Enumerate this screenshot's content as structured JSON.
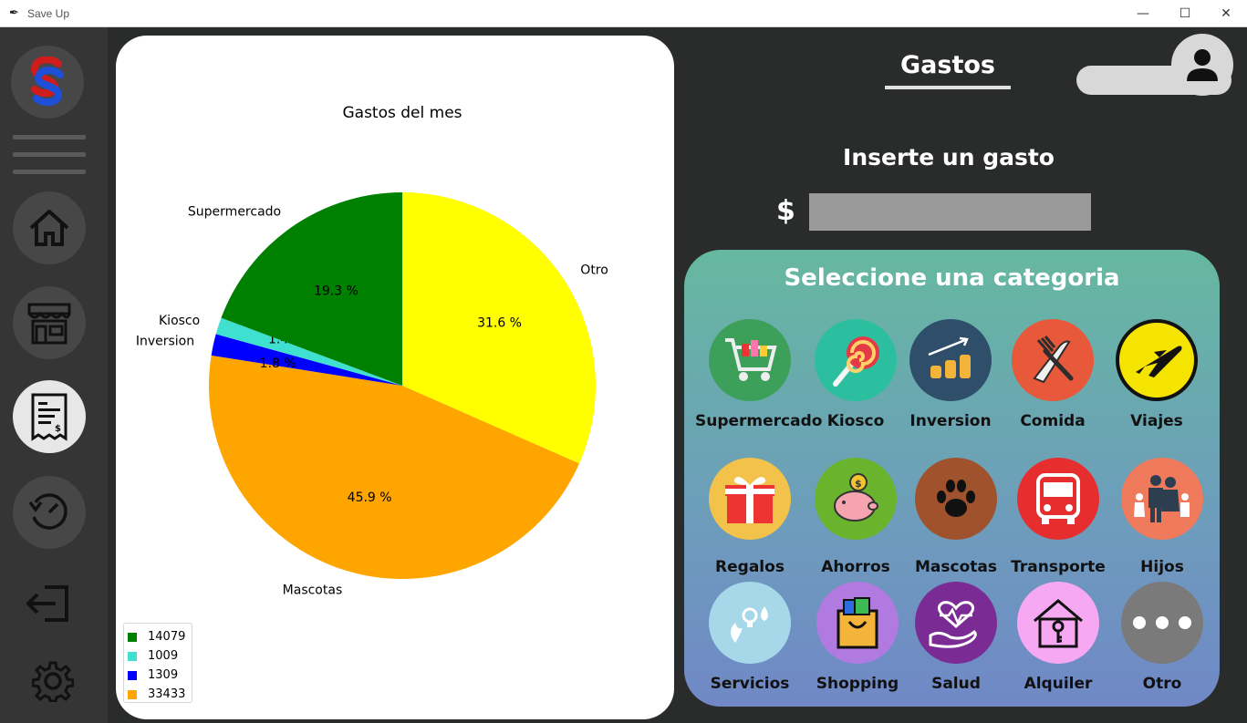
{
  "window": {
    "title": "Save Up"
  },
  "sidebar": {
    "items": [
      {
        "name": "logo",
        "icon": "save-up-logo-icon"
      },
      {
        "name": "menu",
        "icon": "hamburger-icon"
      },
      {
        "name": "home",
        "icon": "home-icon"
      },
      {
        "name": "store",
        "icon": "store-icon"
      },
      {
        "name": "expenses",
        "icon": "receipt-icon",
        "active": true
      },
      {
        "name": "history",
        "icon": "history-icon"
      },
      {
        "name": "logout",
        "icon": "logout-icon"
      },
      {
        "name": "settings",
        "icon": "gear-icon"
      }
    ]
  },
  "header": {
    "title": "Gastos"
  },
  "form": {
    "label": "Inserte un gasto",
    "currency": "$",
    "amount_value": ""
  },
  "categories": {
    "title": "Seleccione una categoria",
    "items": [
      {
        "label": "Supermercado",
        "color": "#3da05a",
        "icon": "shopping-cart-icon"
      },
      {
        "label": "Kiosco",
        "color": "#2bbfa0",
        "icon": "lollipop-icon"
      },
      {
        "label": "Inversion",
        "color": "#2e4e6a",
        "icon": "investment-icon"
      },
      {
        "label": "Comida",
        "color": "#e8583a",
        "icon": "cutlery-icon"
      },
      {
        "label": "Viajes",
        "color": "#f5e400",
        "icon": "airplane-icon"
      },
      {
        "label": "Regalos",
        "color": "#f2c24a",
        "icon": "gift-icon"
      },
      {
        "label": "Ahorros",
        "color": "#6ab42d",
        "icon": "piggy-bank-icon"
      },
      {
        "label": "Mascotas",
        "color": "#a0522d",
        "icon": "paw-icon"
      },
      {
        "label": "Transporte",
        "color": "#e62e2e",
        "icon": "bus-icon"
      },
      {
        "label": "Hijos",
        "color": "#f07a5c",
        "icon": "family-icon"
      },
      {
        "label": "Servicios",
        "color": "#a6d8ea",
        "icon": "utilities-icon"
      },
      {
        "label": "Shopping",
        "color": "#b07ae0",
        "icon": "shopping-bag-icon"
      },
      {
        "label": "Salud",
        "color": "#7b2c94",
        "icon": "health-icon"
      },
      {
        "label": "Alquiler",
        "color": "#f7a8f2",
        "icon": "house-rent-icon"
      },
      {
        "label": "Otro",
        "color": "#7a7a7a",
        "icon": "more-icon"
      }
    ]
  },
  "chart_data": {
    "type": "pie",
    "title": "Gastos del mes",
    "slices": [
      {
        "label": "Otro",
        "pct": 31.6,
        "color": "#ffff00"
      },
      {
        "label": "Mascotas",
        "pct": 45.9,
        "color": "#ffa500"
      },
      {
        "label": "Inversion",
        "pct": 1.8,
        "color": "#0000ff"
      },
      {
        "label": "Kiosco",
        "pct": 1.4,
        "color": "#40e0d0"
      },
      {
        "label": "Supermercado",
        "pct": 19.3,
        "color": "#008000"
      }
    ],
    "slice_labels": [
      "31.6 %",
      "45.9 %",
      "1.8 %",
      "1.4 %",
      "19.3 %"
    ],
    "legend": {
      "placement": "lower-left",
      "entries": [
        {
          "label": "14079",
          "color": "#008000"
        },
        {
          "label": "1009",
          "color": "#40e0d0"
        },
        {
          "label": "1309",
          "color": "#0000ff"
        },
        {
          "label": "33433",
          "color": "#ffa500"
        }
      ]
    }
  }
}
